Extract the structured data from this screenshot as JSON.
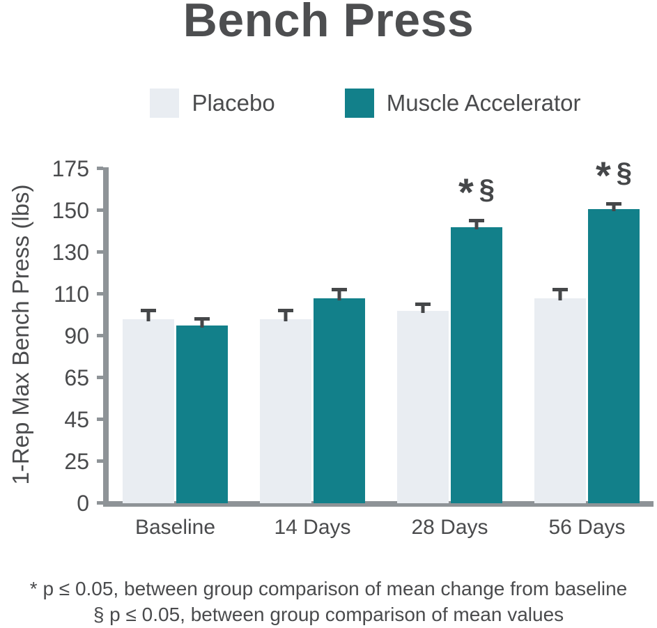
{
  "title": "Bench Press",
  "chart_data": {
    "type": "bar",
    "title": "Bench Press",
    "ylabel": "1-Rep Max Bench Press (lbs)",
    "xlabel": "",
    "categories": [
      "Baseline",
      "14 Days",
      "28 Days",
      "56 Days"
    ],
    "yticks": [
      0,
      25,
      45,
      65,
      90,
      110,
      130,
      150,
      175
    ],
    "ylim": [
      0,
      175
    ],
    "grid": false,
    "legend_position": "top",
    "axis_note": "tick marks evenly spaced despite non-uniform tick values",
    "series": [
      {
        "name": "Placebo",
        "color": "#e9edf2",
        "values": [
          98,
          98,
          102,
          108
        ],
        "errors": [
          5,
          5,
          4,
          5
        ],
        "markers": [
          "",
          "",
          "",
          ""
        ]
      },
      {
        "name": "Muscle Accelerator",
        "color": "#12808a",
        "values": [
          95,
          108,
          142,
          151
        ],
        "errors": [
          4,
          5,
          4,
          4
        ],
        "markers": [
          "",
          "",
          "* §",
          "* §"
        ]
      }
    ]
  },
  "footnotes": [
    "* p ≤ 0.05, between group comparison of mean change from baseline",
    "§ p ≤ 0.05, between group comparison of mean values"
  ],
  "colors": {
    "accent_teal": "#12808a",
    "placebo_gray": "#e9edf2",
    "text_dark": "#4a4b4d",
    "axis_gray": "#8e9397",
    "title_gray": "#4d4e50",
    "error_bar": "#454749",
    "background": "#ffffff"
  }
}
